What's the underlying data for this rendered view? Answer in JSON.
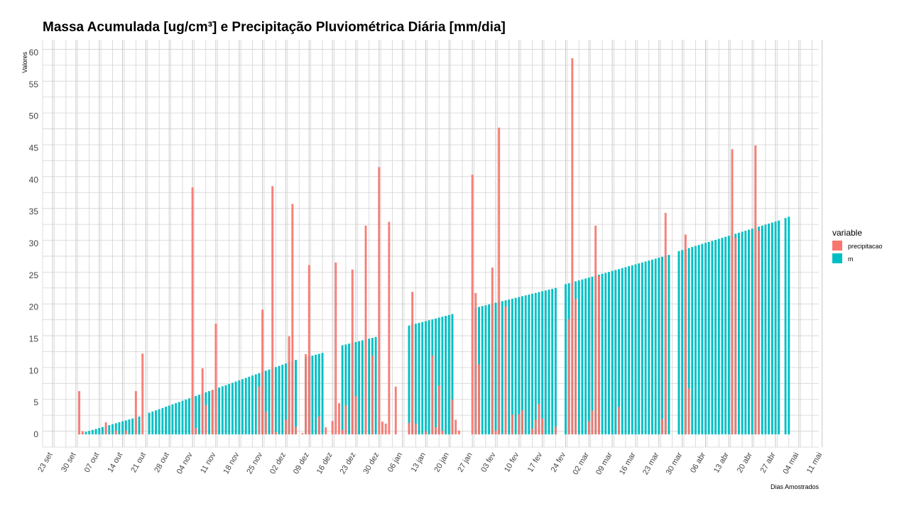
{
  "chart_data": {
    "type": "bar",
    "title": "Massa Acumulada [ug/cm³] e Precipitação Pluviométrica Diária [mm/dia]",
    "xlabel": "Dias Amostrados",
    "ylabel": "Valores",
    "ylim": [
      -2,
      62
    ],
    "yticks": [
      0,
      5,
      10,
      15,
      20,
      25,
      30,
      35,
      40,
      45,
      50,
      55,
      60
    ],
    "x_range": [
      "2017-09-20",
      "2018-05-11"
    ],
    "xticks": [
      {
        "date": "2017-09-23",
        "label": "23 set"
      },
      {
        "date": "2017-09-30",
        "label": "30 set"
      },
      {
        "date": "2017-10-07",
        "label": "07 out"
      },
      {
        "date": "2017-10-14",
        "label": "14 out"
      },
      {
        "date": "2017-10-21",
        "label": "21 out"
      },
      {
        "date": "2017-10-28",
        "label": "28 out"
      },
      {
        "date": "2017-11-04",
        "label": "04 nov"
      },
      {
        "date": "2017-11-11",
        "label": "11 nov"
      },
      {
        "date": "2017-11-18",
        "label": "18 nov"
      },
      {
        "date": "2017-11-25",
        "label": "25 nov"
      },
      {
        "date": "2017-12-02",
        "label": "02 dez"
      },
      {
        "date": "2017-12-09",
        "label": "09 dez"
      },
      {
        "date": "2017-12-16",
        "label": "16 dez"
      },
      {
        "date": "2017-12-23",
        "label": "23 dez"
      },
      {
        "date": "2017-12-30",
        "label": "30 dez"
      },
      {
        "date": "2018-01-06",
        "label": "06 jan"
      },
      {
        "date": "2018-01-13",
        "label": "13 jan"
      },
      {
        "date": "2018-01-20",
        "label": "20 jan"
      },
      {
        "date": "2018-01-27",
        "label": "27 jan"
      },
      {
        "date": "2018-02-03",
        "label": "03 fev"
      },
      {
        "date": "2018-02-10",
        "label": "10 fev"
      },
      {
        "date": "2018-02-17",
        "label": "17 fev"
      },
      {
        "date": "2018-02-24",
        "label": "24 fev"
      },
      {
        "date": "2018-03-03",
        "label": "02 mar"
      },
      {
        "date": "2018-03-10",
        "label": "09 mar"
      },
      {
        "date": "2018-03-17",
        "label": "16 mar"
      },
      {
        "date": "2018-03-24",
        "label": "23 mar"
      },
      {
        "date": "2018-03-31",
        "label": "30 mar"
      },
      {
        "date": "2018-04-07",
        "label": "06 abr"
      },
      {
        "date": "2018-04-14",
        "label": "13 abr"
      },
      {
        "date": "2018-04-21",
        "label": "20 abr"
      },
      {
        "date": "2018-04-28",
        "label": "27 abr"
      },
      {
        "date": "2018-05-05",
        "label": "04 mai"
      },
      {
        "date": "2018-05-12",
        "label": "11 mai"
      }
    ],
    "grid": true,
    "legend": {
      "title": "variable",
      "position": "right"
    },
    "series": [
      {
        "name": "precipitacao",
        "color": "#F8766D",
        "points": [
          [
            "2017-10-01",
            6.8
          ],
          [
            "2017-10-02",
            0.5
          ],
          [
            "2017-10-09",
            1.9
          ],
          [
            "2017-10-12",
            0.6
          ],
          [
            "2017-10-15",
            0.6
          ],
          [
            "2017-10-18",
            6.8
          ],
          [
            "2017-10-20",
            12.7
          ],
          [
            "2017-11-04",
            38.8
          ],
          [
            "2017-11-05",
            1.0
          ],
          [
            "2017-11-07",
            10.4
          ],
          [
            "2017-11-08",
            4.6
          ],
          [
            "2017-11-10",
            7.0
          ],
          [
            "2017-11-11",
            17.4
          ],
          [
            "2017-11-24",
            7.5
          ],
          [
            "2017-11-25",
            19.6
          ],
          [
            "2017-11-26",
            3.6
          ],
          [
            "2017-11-28",
            39.0
          ],
          [
            "2017-11-29",
            0.4
          ],
          [
            "2017-12-02",
            2.3
          ],
          [
            "2017-12-03",
            15.4
          ],
          [
            "2017-12-04",
            36.2
          ],
          [
            "2017-12-05",
            1.2
          ],
          [
            "2017-12-07",
            0.2
          ],
          [
            "2017-12-08",
            12.6
          ],
          [
            "2017-12-09",
            26.6
          ],
          [
            "2017-12-12",
            2.8
          ],
          [
            "2017-12-14",
            1.1
          ],
          [
            "2017-12-16",
            2.1
          ],
          [
            "2017-12-17",
            27.0
          ],
          [
            "2017-12-18",
            4.9
          ],
          [
            "2017-12-19",
            0.7
          ],
          [
            "2017-12-20",
            4.6
          ],
          [
            "2017-12-22",
            25.9
          ],
          [
            "2017-12-23",
            6.0
          ],
          [
            "2017-12-26",
            32.8
          ],
          [
            "2017-12-28",
            12.4
          ],
          [
            "2017-12-30",
            42.0
          ],
          [
            "2017-12-31",
            2.0
          ],
          [
            "2018-01-01",
            1.7
          ],
          [
            "2018-01-02",
            33.4
          ],
          [
            "2018-01-04",
            7.5
          ],
          [
            "2018-01-08",
            1.8
          ],
          [
            "2018-01-09",
            22.4
          ],
          [
            "2018-01-10",
            1.7
          ],
          [
            "2018-01-13",
            0.5
          ],
          [
            "2018-01-15",
            12.4
          ],
          [
            "2018-01-16",
            1.1
          ],
          [
            "2018-01-17",
            7.7
          ],
          [
            "2018-01-18",
            0.6
          ],
          [
            "2018-01-21",
            5.5
          ],
          [
            "2018-01-22",
            2.3
          ],
          [
            "2018-01-23",
            0.6
          ],
          [
            "2018-01-27",
            40.8
          ],
          [
            "2018-01-28",
            22.2
          ],
          [
            "2018-01-29",
            11.0
          ],
          [
            "2018-02-02",
            26.2
          ],
          [
            "2018-02-03",
            0.6
          ],
          [
            "2018-02-04",
            48.2
          ],
          [
            "2018-02-06",
            20.1
          ],
          [
            "2018-02-08",
            3.1
          ],
          [
            "2018-02-10",
            3.2
          ],
          [
            "2018-02-11",
            3.8
          ],
          [
            "2018-02-14",
            0.9
          ],
          [
            "2018-02-15",
            2.3
          ],
          [
            "2018-02-16",
            4.8
          ],
          [
            "2018-02-17",
            2.5
          ],
          [
            "2018-02-21",
            1.2
          ],
          [
            "2018-02-25",
            18.1
          ],
          [
            "2018-02-26",
            59.1
          ],
          [
            "2018-02-27",
            21.3
          ],
          [
            "2018-03-03",
            2.1
          ],
          [
            "2018-03-04",
            3.7
          ],
          [
            "2018-03-05",
            32.8
          ],
          [
            "2018-03-06",
            24.9
          ],
          [
            "2018-03-12",
            4.3
          ],
          [
            "2018-03-25",
            2.4
          ],
          [
            "2018-03-26",
            34.8
          ],
          [
            "2018-04-01",
            31.4
          ],
          [
            "2018-04-02",
            7.2
          ],
          [
            "2018-04-15",
            44.8
          ],
          [
            "2018-04-16",
            30.9
          ],
          [
            "2018-04-22",
            45.4
          ],
          [
            "2018-04-23",
            32.0
          ]
        ]
      },
      {
        "name": "m",
        "color": "#00BFC4",
        "gap_days": 4,
        "segments": [
          {
            "start": "2017-10-01",
            "end": "2017-10-19",
            "y_start": 0.1,
            "y_end": 2.8
          },
          {
            "start": "2017-10-22",
            "end": "2017-12-05",
            "y_start": 3.4,
            "y_end": 11.7
          },
          {
            "start": "2017-12-08",
            "end": "2017-12-13",
            "y_start": 12.1,
            "y_end": 12.8
          },
          {
            "start": "2017-12-19",
            "end": "2017-12-29",
            "y_start": 14.0,
            "y_end": 15.3
          },
          {
            "start": "2018-01-08",
            "end": "2018-01-21",
            "y_start": 17.1,
            "y_end": 18.9
          },
          {
            "start": "2018-01-28",
            "end": "2018-02-21",
            "y_start": 19.9,
            "y_end": 23.0
          },
          {
            "start": "2018-02-24",
            "end": "2018-03-27",
            "y_start": 23.6,
            "y_end": 28.2
          },
          {
            "start": "2018-03-30",
            "end": "2018-04-29",
            "y_start": 28.8,
            "y_end": 33.6
          },
          {
            "start": "2018-05-01",
            "end": "2018-05-02",
            "y_start": 34.0,
            "y_end": 34.2
          }
        ]
      }
    ]
  }
}
